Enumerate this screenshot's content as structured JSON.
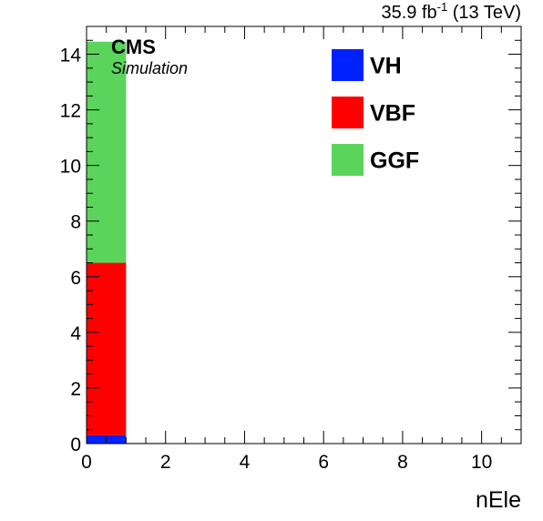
{
  "chart_data": {
    "type": "bar",
    "stacked": true,
    "xlabel": "nEle",
    "ylabel": "",
    "xlim": [
      0,
      11
    ],
    "ylim": [
      0,
      15
    ],
    "x_ticks": [
      0,
      2,
      4,
      6,
      8,
      10
    ],
    "y_ticks": [
      0,
      2,
      4,
      6,
      8,
      10,
      12,
      14
    ],
    "bin_width": 1,
    "bins": [
      0,
      1,
      2,
      3,
      4,
      5,
      6,
      7,
      8,
      9,
      10
    ],
    "series": [
      {
        "name": "VH",
        "color": "#0022ff",
        "values": [
          0.3,
          0.02,
          0,
          0,
          0,
          0,
          0,
          0,
          0,
          0,
          0
        ]
      },
      {
        "name": "VBF",
        "color": "#ff0000",
        "values": [
          6.2,
          0,
          0,
          0,
          0,
          0,
          0,
          0,
          0,
          0,
          0
        ]
      },
      {
        "name": "GGF",
        "color": "#5ad45a",
        "values": [
          7.95,
          0,
          0,
          0,
          0,
          0,
          0,
          0,
          0,
          0,
          0
        ]
      }
    ],
    "legend_position": "top-right",
    "grid": false,
    "annotations": {
      "experiment": "CMS",
      "status": "Simulation",
      "lumi_value": "35.9 fb",
      "lumi_exponent": "-1",
      "energy": " (13 TeV)"
    }
  }
}
